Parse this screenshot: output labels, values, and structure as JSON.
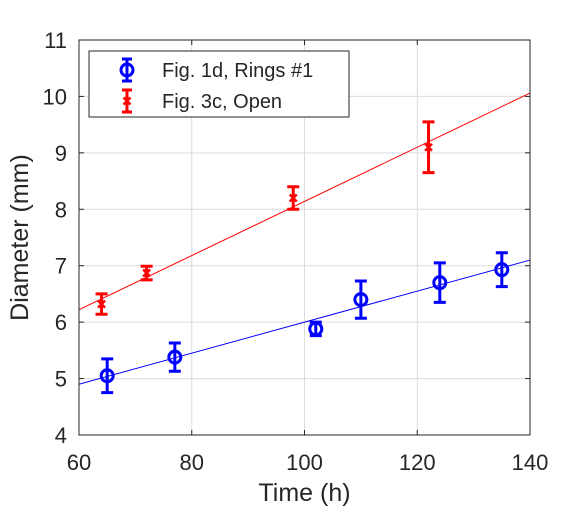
{
  "chart_data": {
    "type": "scatter",
    "title": "",
    "xlabel": "Time (h)",
    "ylabel": "Diameter (mm)",
    "xlim": [
      60,
      140
    ],
    "ylim": [
      4,
      11
    ],
    "xticks": [
      60,
      80,
      100,
      120,
      140
    ],
    "yticks": [
      4,
      5,
      6,
      7,
      8,
      9,
      10,
      11
    ],
    "xtick_labels": [
      "60",
      "80",
      "100",
      "120",
      "140"
    ],
    "ytick_labels": [
      "4",
      "5",
      "6",
      "7",
      "8",
      "9",
      "10",
      "11"
    ],
    "grid": true,
    "legend_position": "top-left",
    "series": [
      {
        "name": "Fig. 1d, Rings #1",
        "color": "#0000ff",
        "marker": "circle",
        "points": [
          {
            "x": 65,
            "y": 5.05,
            "err": 0.3
          },
          {
            "x": 77,
            "y": 5.38,
            "err": 0.25
          },
          {
            "x": 102,
            "y": 5.88,
            "err": 0.12
          },
          {
            "x": 110,
            "y": 6.4,
            "err": 0.33
          },
          {
            "x": 124,
            "y": 6.7,
            "err": 0.35
          },
          {
            "x": 135,
            "y": 6.93,
            "err": 0.3
          }
        ],
        "fit": {
          "x": [
            60,
            140
          ],
          "y": [
            4.9,
            7.1
          ]
        }
      },
      {
        "name": "Fig. 3c, Open",
        "color": "#ff0000",
        "marker": "x",
        "points": [
          {
            "x": 64,
            "y": 6.32,
            "err": 0.18
          },
          {
            "x": 72,
            "y": 6.87,
            "err": 0.12
          },
          {
            "x": 98,
            "y": 8.2,
            "err": 0.2
          },
          {
            "x": 122,
            "y": 9.1,
            "err": 0.45
          }
        ],
        "fit": {
          "x": [
            60,
            140
          ],
          "y": [
            6.22,
            10.06
          ]
        }
      }
    ]
  }
}
